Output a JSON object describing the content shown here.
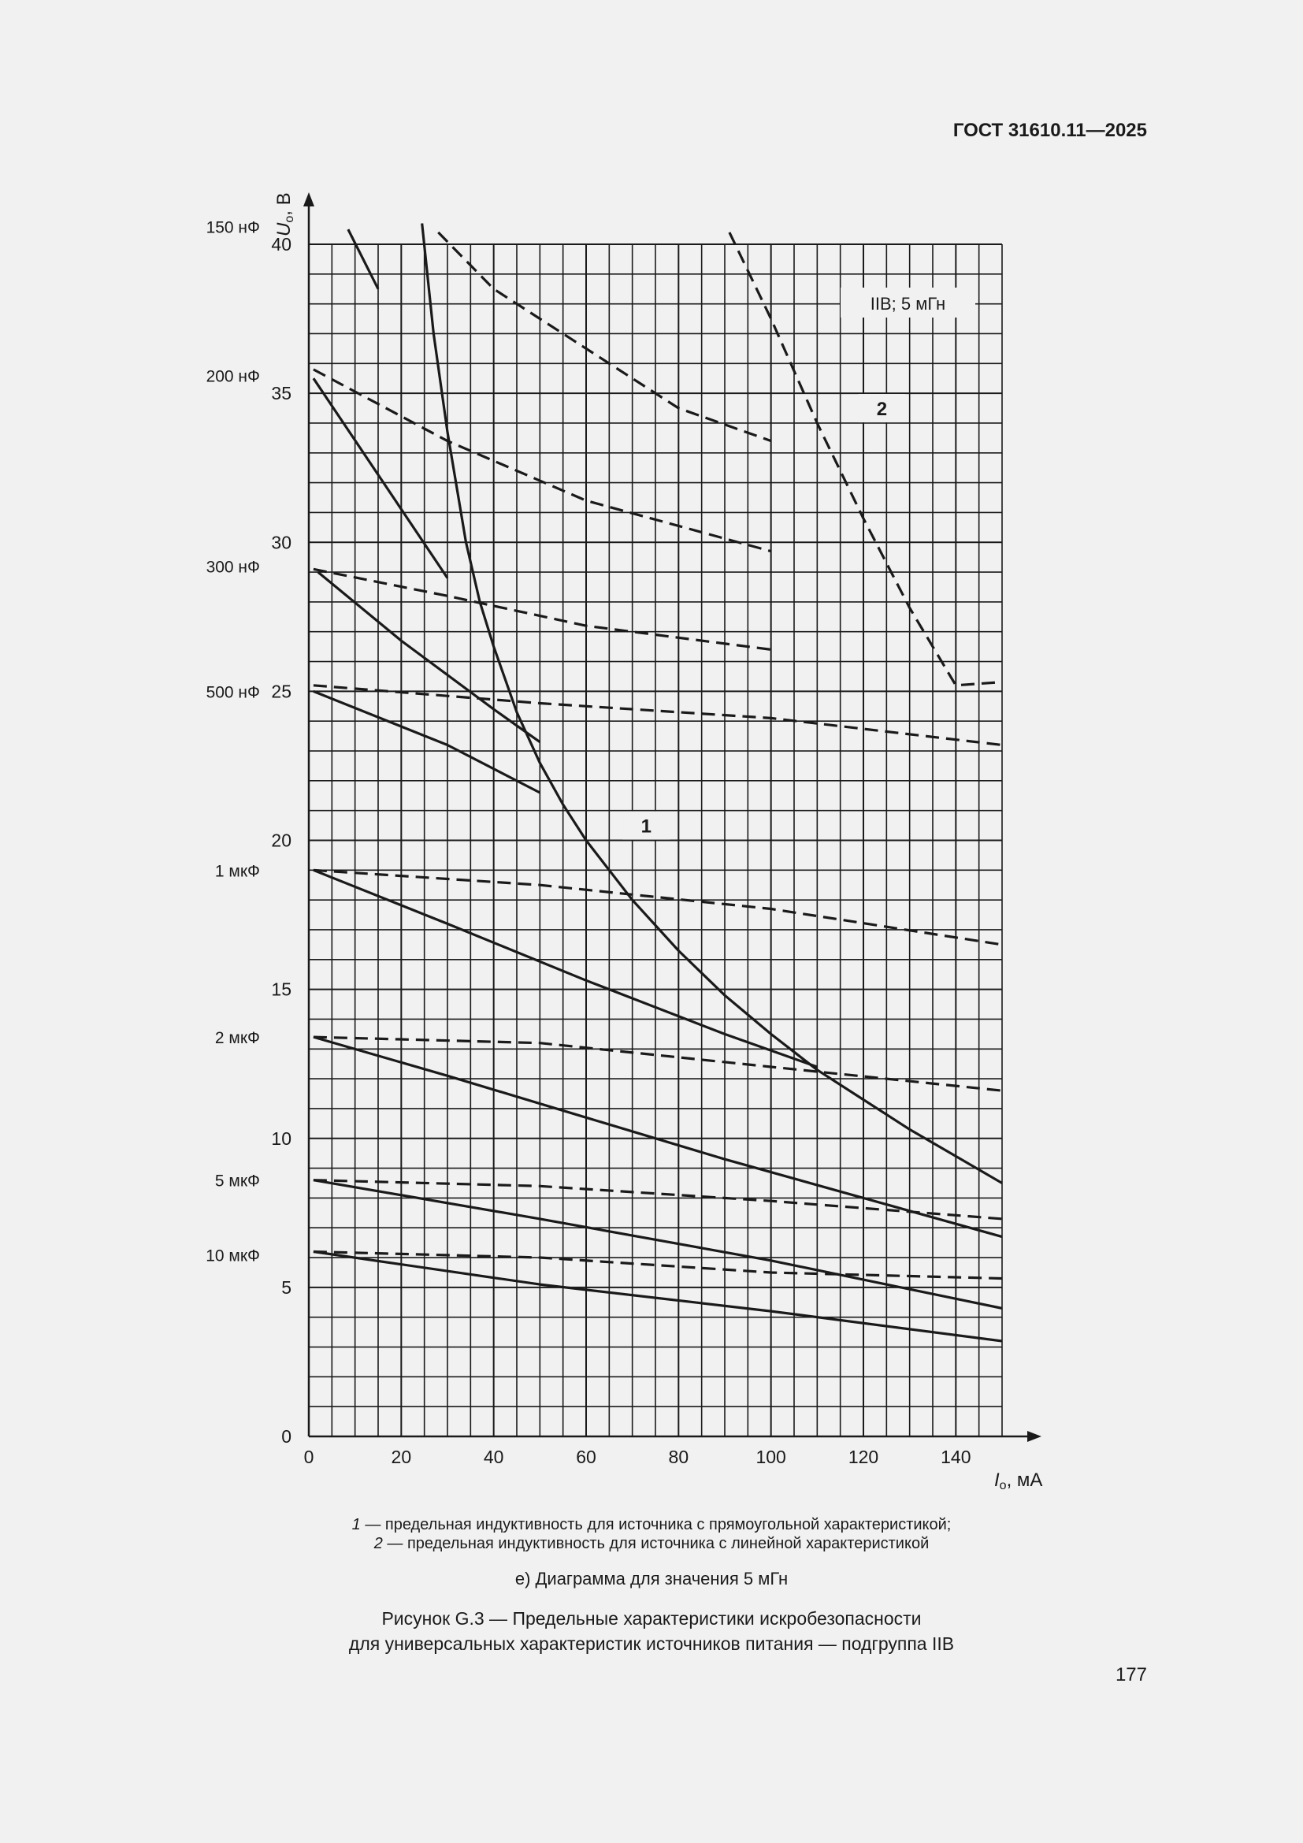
{
  "header": {
    "doc_number": "ГОСТ 31610.11—2025"
  },
  "page_number": "177",
  "legend": [
    {
      "num": "1",
      "text": " — предельная индуктивность для источника с прямоугольной характеристикой;"
    },
    {
      "num": "2",
      "text": " — предельная индуктивность для источника с линейной характеристикой"
    }
  ],
  "subcaption": "е) Диаграмма для значения 5 мГн",
  "caption": {
    "line1": "Рисунок G.3 — Предельные характеристики искробезопасности",
    "line2": "для универсальных характеристик источников питания — подгруппа IIB"
  },
  "chart_data": {
    "type": "line",
    "title": "",
    "xlabel": {
      "symbol": "I",
      "subscript": "o",
      "unit": ", мА"
    },
    "ylabel": {
      "symbol": "U",
      "subscript": "o",
      "unit": ", В"
    },
    "xlim": [
      0,
      150
    ],
    "ylim": [
      0,
      40
    ],
    "x_ticks": [
      0,
      20,
      40,
      60,
      80,
      100,
      120,
      140
    ],
    "y_ticks": [
      0,
      5,
      10,
      15,
      20,
      25,
      30,
      35,
      40
    ],
    "grid": true,
    "annotation_box": "IIB; 5 мГн",
    "curve_labels": [
      {
        "text": "1",
        "x": 73,
        "y": 20.5
      },
      {
        "text": "2",
        "x": 124,
        "y": 34.5
      }
    ],
    "capacitance_labels": [
      {
        "text": "150 нФ",
        "y": 40.6
      },
      {
        "text": "200 нФ",
        "y": 35.6
      },
      {
        "text": "300 нФ",
        "y": 29.2
      },
      {
        "text": "500 нФ",
        "y": 25.0
      },
      {
        "text": "1 мкФ",
        "y": 19.0
      },
      {
        "text": "2 мкФ",
        "y": 13.4
      },
      {
        "text": "5 мкФ",
        "y": 8.6
      },
      {
        "text": "10 мкФ",
        "y": 6.1
      }
    ],
    "series": [
      {
        "style": "solid",
        "points": [
          [
            24.5,
            40.7
          ],
          [
            27,
            37
          ],
          [
            30,
            33.7
          ],
          [
            34,
            30
          ],
          [
            37,
            28
          ],
          [
            40,
            26.5
          ],
          [
            45,
            24.3
          ],
          [
            50,
            22.6
          ],
          [
            55,
            21.2
          ],
          [
            60,
            20.0
          ],
          [
            70,
            18.0
          ],
          [
            80,
            16.3
          ],
          [
            90,
            14.8
          ],
          [
            100,
            13.5
          ],
          [
            110,
            12.3
          ],
          [
            120,
            11.3
          ],
          [
            130,
            10.3
          ],
          [
            140,
            9.4
          ],
          [
            150,
            8.5
          ]
        ]
      },
      {
        "style": "dashed",
        "points": [
          [
            91,
            40.4
          ],
          [
            100,
            37.5
          ],
          [
            110,
            34.0
          ],
          [
            120,
            30.8
          ],
          [
            130,
            27.8
          ],
          [
            140,
            25.2
          ],
          [
            149,
            25.3
          ]
        ]
      },
      {
        "style": "solid",
        "points": [
          [
            8.5,
            40.5
          ],
          [
            15,
            38.5
          ]
        ]
      },
      {
        "style": "dashed",
        "points": [
          [
            28,
            40.4
          ],
          [
            40,
            38.5
          ],
          [
            60,
            36.5
          ],
          [
            80,
            34.5
          ],
          [
            100,
            33.4
          ]
        ]
      },
      {
        "style": "solid",
        "points": [
          [
            1,
            35.5
          ],
          [
            30,
            28.8
          ]
        ]
      },
      {
        "style": "dashed",
        "points": [
          [
            1,
            35.8
          ],
          [
            30,
            33.4
          ],
          [
            60,
            31.4
          ],
          [
            100,
            29.7
          ]
        ]
      },
      {
        "style": "solid",
        "points": [
          [
            2,
            29.0
          ],
          [
            20,
            26.7
          ],
          [
            40,
            24.4
          ],
          [
            50,
            23.3
          ]
        ]
      },
      {
        "style": "dashed",
        "points": [
          [
            1,
            29.1
          ],
          [
            30,
            28.2
          ],
          [
            60,
            27.2
          ],
          [
            100,
            26.4
          ]
        ]
      },
      {
        "style": "solid",
        "points": [
          [
            1,
            25.0
          ],
          [
            30,
            23.2
          ],
          [
            50,
            21.6
          ]
        ]
      },
      {
        "style": "dashed",
        "points": [
          [
            1,
            25.2
          ],
          [
            50,
            24.6
          ],
          [
            100,
            24.1
          ],
          [
            150,
            23.2
          ]
        ]
      },
      {
        "style": "solid",
        "points": [
          [
            1,
            19.0
          ],
          [
            30,
            17.2
          ],
          [
            60,
            15.3
          ],
          [
            90,
            13.5
          ],
          [
            110,
            12.4
          ]
        ]
      },
      {
        "style": "dashed",
        "points": [
          [
            1,
            19.0
          ],
          [
            50,
            18.5
          ],
          [
            100,
            17.7
          ],
          [
            150,
            16.5
          ]
        ]
      },
      {
        "style": "solid",
        "points": [
          [
            1,
            13.4
          ],
          [
            30,
            12.1
          ],
          [
            60,
            10.7
          ],
          [
            90,
            9.3
          ],
          [
            120,
            8.0
          ],
          [
            150,
            6.7
          ]
        ]
      },
      {
        "style": "dashed",
        "points": [
          [
            1,
            13.4
          ],
          [
            50,
            13.2
          ],
          [
            100,
            12.4
          ],
          [
            150,
            11.6
          ]
        ]
      },
      {
        "style": "solid",
        "points": [
          [
            1,
            8.6
          ],
          [
            50,
            7.3
          ],
          [
            100,
            5.9
          ],
          [
            150,
            4.3
          ]
        ]
      },
      {
        "style": "dashed",
        "points": [
          [
            1,
            8.6
          ],
          [
            50,
            8.4
          ],
          [
            100,
            7.9
          ],
          [
            150,
            7.3
          ]
        ]
      },
      {
        "style": "solid",
        "points": [
          [
            1,
            6.2
          ],
          [
            50,
            5.1
          ],
          [
            100,
            4.2
          ],
          [
            150,
            3.2
          ]
        ]
      },
      {
        "style": "dashed",
        "points": [
          [
            1,
            6.2
          ],
          [
            50,
            6.0
          ],
          [
            100,
            5.5
          ],
          [
            150,
            5.3
          ]
        ]
      }
    ]
  }
}
